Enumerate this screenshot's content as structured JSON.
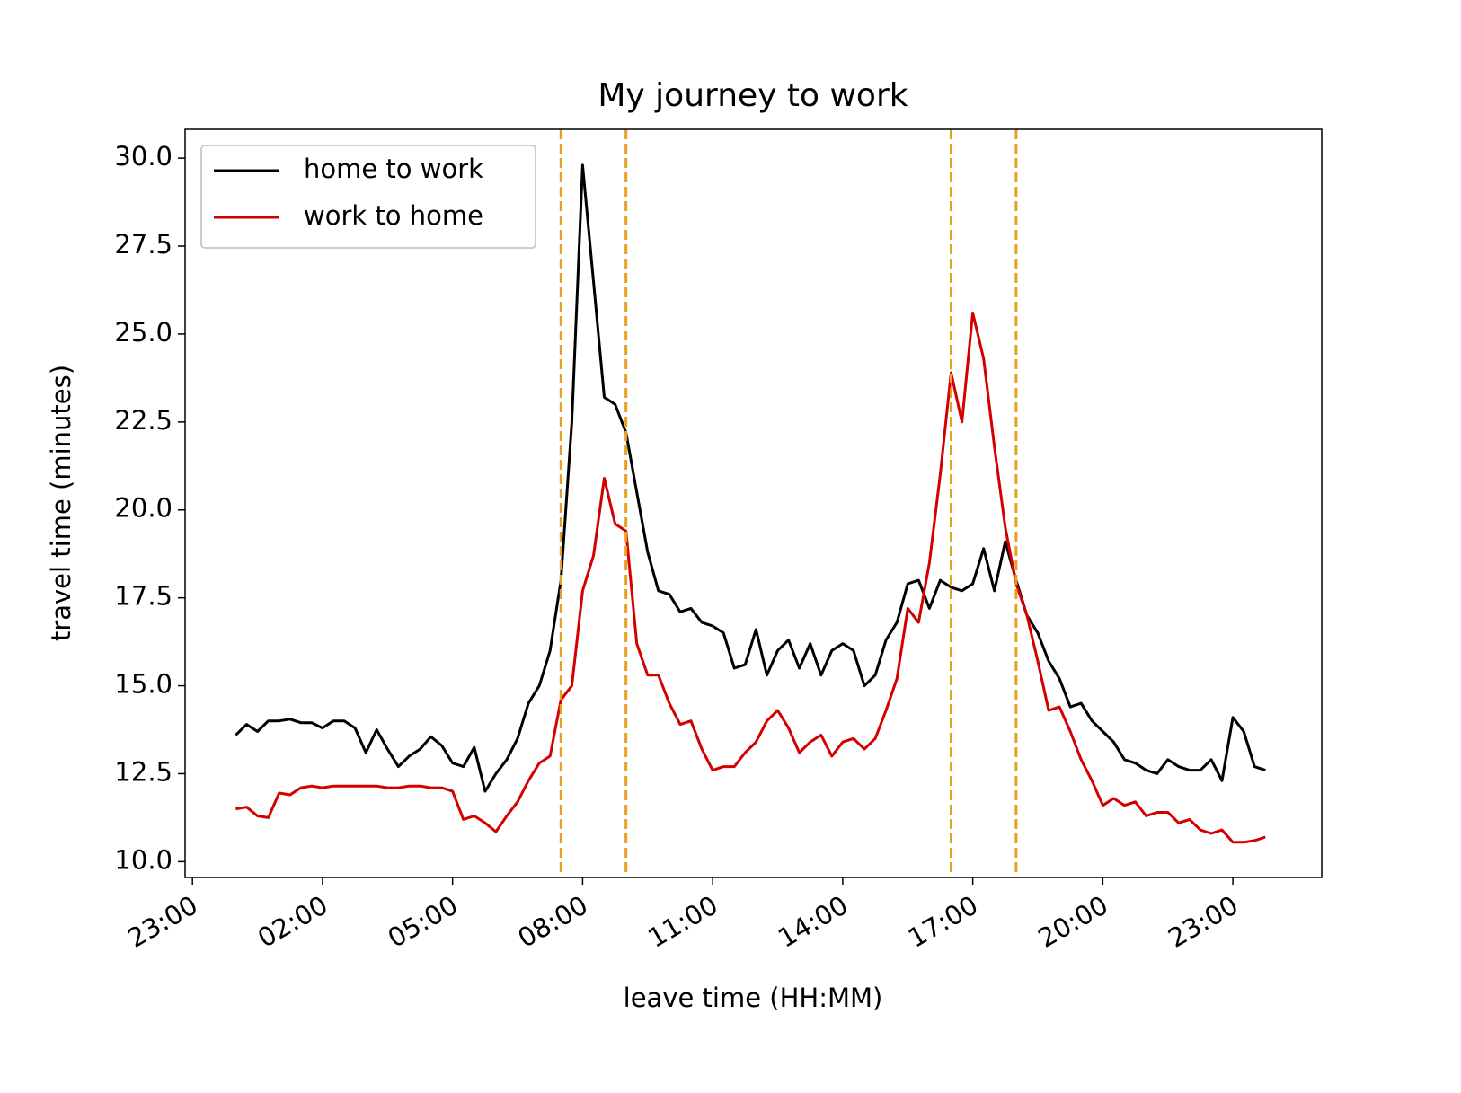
{
  "chart_data": {
    "type": "line",
    "title": "My journey to work",
    "xlabel": "leave time (HH:MM)",
    "ylabel": "travel time (minutes)",
    "x": [
      0,
      0.25,
      0.5,
      0.75,
      1,
      1.25,
      1.5,
      1.75,
      2,
      2.25,
      2.5,
      2.75,
      3,
      3.25,
      3.5,
      3.75,
      4,
      4.25,
      4.5,
      4.75,
      5,
      5.25,
      5.5,
      5.75,
      6,
      6.25,
      6.5,
      6.75,
      7,
      7.25,
      7.5,
      7.75,
      8,
      8.25,
      8.5,
      8.75,
      9,
      9.25,
      9.5,
      9.75,
      10,
      10.25,
      10.5,
      10.75,
      11,
      11.25,
      11.5,
      11.75,
      12,
      12.25,
      12.5,
      12.75,
      13,
      13.25,
      13.5,
      13.75,
      14,
      14.25,
      14.5,
      14.75,
      15,
      15.25,
      15.5,
      15.75,
      16,
      16.25,
      16.5,
      16.75,
      17,
      17.25,
      17.5,
      17.75,
      18,
      18.25,
      18.5,
      18.75,
      19,
      19.25,
      19.5,
      19.75,
      20,
      20.25,
      20.5,
      20.75,
      21,
      21.25,
      21.5,
      21.75,
      22,
      22.25,
      22.5,
      22.75,
      23,
      23.25,
      23.5,
      23.75
    ],
    "series": [
      {
        "name": "home to work",
        "color": "#000000",
        "values": [
          13.6,
          13.9,
          13.7,
          14.0,
          14.0,
          14.05,
          13.95,
          13.95,
          13.8,
          14.0,
          14.0,
          13.8,
          13.1,
          13.75,
          13.2,
          12.7,
          13.0,
          13.2,
          13.55,
          13.3,
          12.8,
          12.7,
          13.25,
          12.0,
          12.5,
          12.9,
          13.5,
          14.5,
          15.0,
          16.0,
          18.0,
          22.5,
          29.8,
          26.5,
          23.2,
          23.0,
          22.2,
          20.5,
          18.8,
          17.7,
          17.6,
          17.1,
          17.2,
          16.8,
          16.7,
          16.5,
          15.5,
          15.6,
          16.6,
          15.3,
          16.0,
          16.3,
          15.5,
          16.2,
          15.3,
          16.0,
          16.2,
          16.0,
          15.0,
          15.3,
          16.3,
          16.8,
          17.9,
          18.0,
          17.2,
          18.0,
          17.8,
          17.7,
          17.9,
          18.9,
          17.7,
          19.1,
          18.0,
          17.0,
          16.5,
          15.7,
          15.2,
          14.4,
          14.5,
          14.0,
          13.7,
          13.4,
          12.9,
          12.8,
          12.6,
          12.5,
          12.9,
          12.7,
          12.6,
          12.6,
          12.9,
          12.3,
          14.1,
          13.7,
          12.7,
          12.6
        ]
      },
      {
        "name": "work to home",
        "color": "#d40000",
        "values": [
          11.5,
          11.55,
          11.3,
          11.25,
          11.95,
          11.9,
          12.1,
          12.15,
          12.1,
          12.15,
          12.15,
          12.15,
          12.15,
          12.15,
          12.1,
          12.1,
          12.15,
          12.15,
          12.1,
          12.1,
          12.0,
          11.2,
          11.3,
          11.1,
          10.85,
          11.3,
          11.7,
          12.3,
          12.8,
          13.0,
          14.6,
          15.0,
          17.7,
          18.7,
          20.9,
          19.6,
          19.4,
          16.2,
          15.3,
          15.3,
          14.5,
          13.9,
          14.0,
          13.2,
          12.6,
          12.7,
          12.7,
          13.1,
          13.4,
          14.0,
          14.3,
          13.8,
          13.1,
          13.4,
          13.6,
          13.0,
          13.4,
          13.5,
          13.2,
          13.5,
          14.3,
          15.2,
          17.2,
          16.8,
          18.5,
          21.0,
          23.9,
          22.5,
          25.6,
          24.3,
          21.8,
          19.5,
          17.9,
          17.0,
          15.7,
          14.3,
          14.4,
          13.7,
          12.9,
          12.3,
          11.6,
          11.8,
          11.6,
          11.7,
          11.3,
          11.4,
          11.4,
          11.1,
          11.2,
          10.9,
          10.8,
          10.9,
          10.55,
          10.55,
          10.6,
          10.7
        ]
      }
    ],
    "vlines": [
      7.5,
      9,
      16.5,
      18
    ],
    "vline_color": "#e8a020",
    "xlim": [
      -1.17,
      25.05
    ],
    "ylim": [
      9.55,
      30.82
    ],
    "xticks": [
      {
        "value": -1,
        "label": "23:00"
      },
      {
        "value": 2,
        "label": "02:00"
      },
      {
        "value": 5,
        "label": "05:00"
      },
      {
        "value": 8,
        "label": "08:00"
      },
      {
        "value": 11,
        "label": "11:00"
      },
      {
        "value": 14,
        "label": "14:00"
      },
      {
        "value": 17,
        "label": "17:00"
      },
      {
        "value": 20,
        "label": "20:00"
      },
      {
        "value": 23,
        "label": "23:00"
      }
    ],
    "yticks": [
      {
        "value": 10,
        "label": "10.0"
      },
      {
        "value": 12.5,
        "label": "12.5"
      },
      {
        "value": 15,
        "label": "15.0"
      },
      {
        "value": 17.5,
        "label": "17.5"
      },
      {
        "value": 20,
        "label": "20.0"
      },
      {
        "value": 22.5,
        "label": "22.5"
      },
      {
        "value": 25,
        "label": "25.0"
      },
      {
        "value": 27.5,
        "label": "27.5"
      },
      {
        "value": 30,
        "label": "30.0"
      }
    ],
    "legend": "upper left",
    "grid": false
  }
}
